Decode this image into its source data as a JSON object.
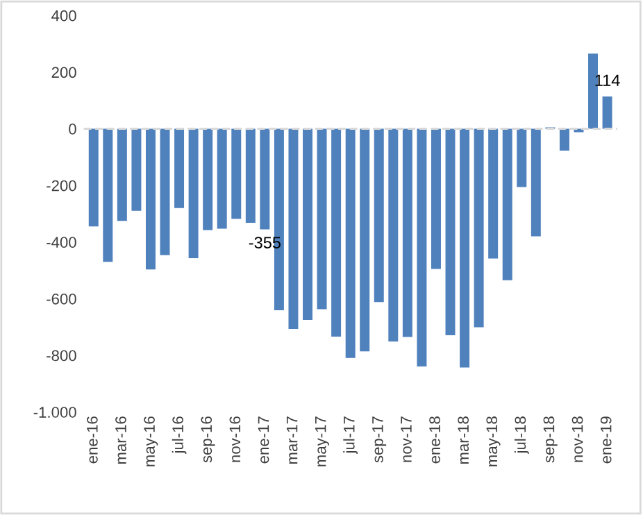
{
  "chart_data": {
    "type": "bar",
    "categories": [
      "ene-16",
      null,
      "mar-16",
      null,
      "may-16",
      null,
      "jul-16",
      null,
      "sep-16",
      null,
      "nov-16",
      null,
      "ene-17",
      null,
      "mar-17",
      null,
      "may-17",
      null,
      "jul-17",
      null,
      "sep-17",
      null,
      "nov-17",
      null,
      "ene-18",
      null,
      "mar-18",
      null,
      "may-18",
      null,
      "jul-18",
      null,
      "sep-18",
      null,
      "nov-18",
      null,
      "ene-19"
    ],
    "values": [
      -345,
      -470,
      -325,
      -290,
      -497,
      -446,
      -280,
      -457,
      -358,
      -353,
      -318,
      -332,
      -355,
      -641,
      -707,
      -675,
      -637,
      -734,
      -809,
      -786,
      -612,
      -751,
      -735,
      -839,
      -495,
      -729,
      -843,
      -701,
      -458,
      -535,
      -206,
      -380,
      5,
      -77,
      -12,
      265,
      114
    ],
    "value_labels": [
      null,
      null,
      null,
      null,
      null,
      null,
      null,
      null,
      null,
      null,
      null,
      null,
      "-355",
      null,
      null,
      null,
      null,
      null,
      null,
      null,
      null,
      null,
      null,
      null,
      null,
      null,
      null,
      null,
      null,
      null,
      null,
      null,
      null,
      null,
      null,
      null,
      "114"
    ],
    "color": "#4f81bd",
    "ylim": [
      -1000,
      400
    ],
    "yticks": [
      {
        "value": -1000,
        "label": "-1.000"
      },
      -800,
      -600,
      -400,
      -200,
      0,
      200,
      400
    ],
    "ref_lines": [
      {
        "axis": "y",
        "value": 0,
        "color": "#d9d9d9",
        "line_style": "dashed"
      }
    ]
  }
}
